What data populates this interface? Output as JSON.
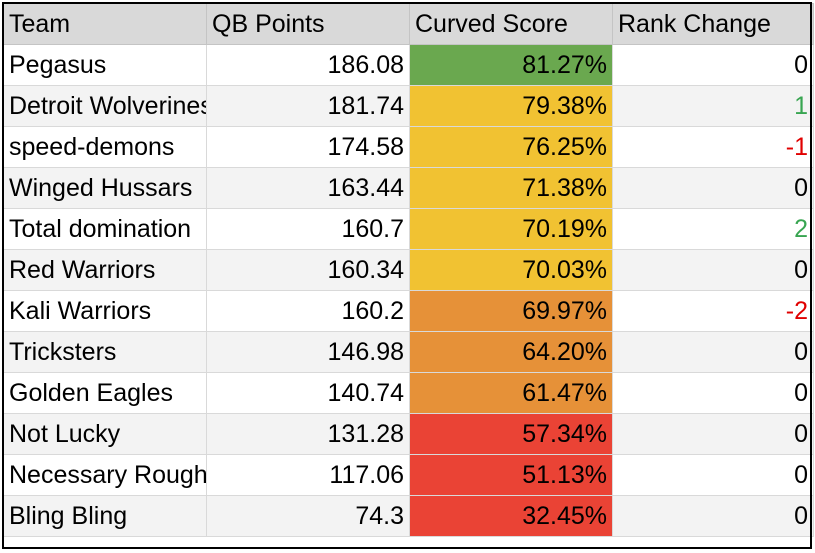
{
  "columns": {
    "team": "Team",
    "qb_points": "QB Points",
    "curved_score": "Curved Score",
    "rank_change": "Rank Change"
  },
  "colors": {
    "top_green": "#6aa84f",
    "yellow": "#f1c232",
    "orange": "#e69138",
    "red": "#ea4335",
    "positive_text": "#38a551",
    "negative_text": "#e00000",
    "neutral_text": "#000000"
  },
  "rows": [
    {
      "team": "Pegasus",
      "qb": "186.08",
      "curve": "81.27%",
      "band": "top_green",
      "rank": "0",
      "trend": "neutral"
    },
    {
      "team": "Detroit Wolverines",
      "qb": "181.74",
      "curve": "79.38%",
      "band": "yellow",
      "rank": "1",
      "trend": "positive"
    },
    {
      "team": "speed-demons",
      "qb": "174.58",
      "curve": "76.25%",
      "band": "yellow",
      "rank": "-1",
      "trend": "negative"
    },
    {
      "team": "Winged Hussars",
      "qb": "163.44",
      "curve": "71.38%",
      "band": "yellow",
      "rank": "0",
      "trend": "neutral"
    },
    {
      "team": "Total domination",
      "qb": "160.7",
      "curve": "70.19%",
      "band": "yellow",
      "rank": "2",
      "trend": "positive"
    },
    {
      "team": "Red Warriors",
      "qb": "160.34",
      "curve": "70.03%",
      "band": "yellow",
      "rank": "0",
      "trend": "neutral"
    },
    {
      "team": "Kali Warriors",
      "qb": "160.2",
      "curve": "69.97%",
      "band": "orange",
      "rank": "-2",
      "trend": "negative"
    },
    {
      "team": "Tricksters",
      "qb": "146.98",
      "curve": "64.20%",
      "band": "orange",
      "rank": "0",
      "trend": "neutral"
    },
    {
      "team": "Golden Eagles",
      "qb": "140.74",
      "curve": "61.47%",
      "band": "orange",
      "rank": "0",
      "trend": "neutral"
    },
    {
      "team": "Not Lucky",
      "qb": "131.28",
      "curve": "57.34%",
      "band": "red",
      "rank": "0",
      "trend": "neutral"
    },
    {
      "team": "Necessary Roughness",
      "qb": "117.06",
      "curve": "51.13%",
      "band": "red",
      "rank": "0",
      "trend": "neutral"
    },
    {
      "team": "Bling Bling",
      "qb": "74.3",
      "curve": "32.45%",
      "band": "red",
      "rank": "0",
      "trend": "neutral"
    }
  ]
}
